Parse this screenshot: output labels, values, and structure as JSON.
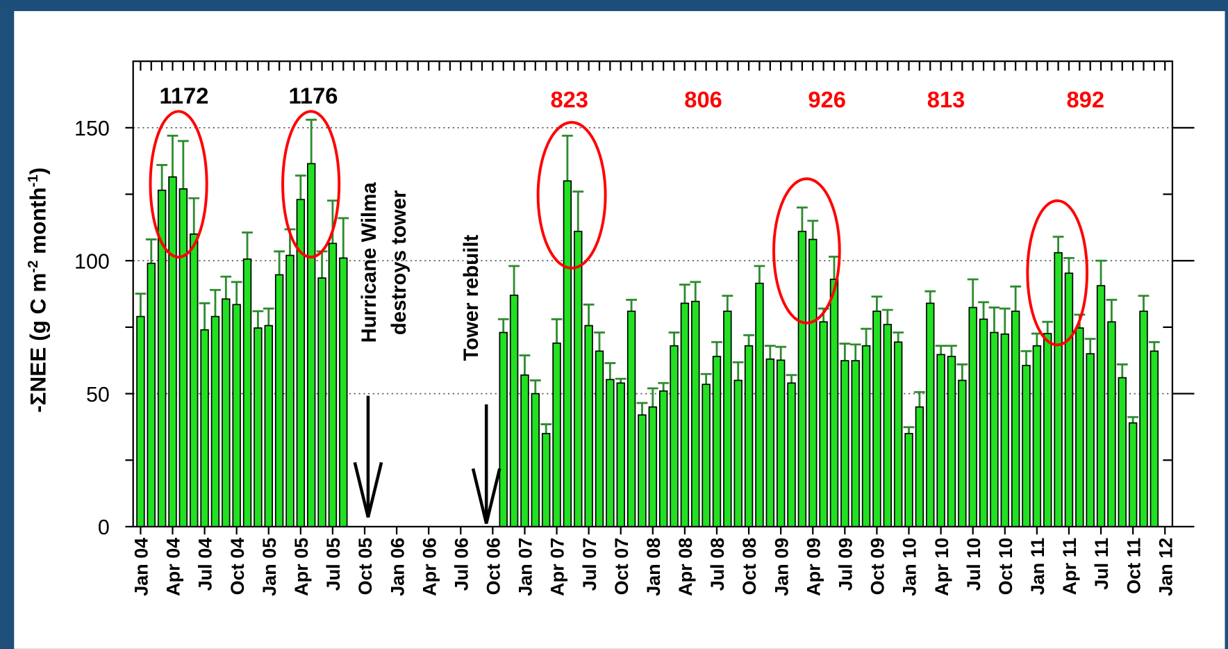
{
  "chart_data": {
    "type": "bar",
    "y_label": {
      "main": "-ΣNEE (g C m",
      "sup1": "-2",
      "mid": " month",
      "sup2": "-1",
      "end": ")"
    },
    "categories": [
      "Jan 04",
      null,
      null,
      "Apr 04",
      null,
      null,
      "Jul 04",
      null,
      null,
      "Oct 04",
      null,
      null,
      "Jan 05",
      null,
      null,
      "Apr 05",
      null,
      null,
      "Jul 05",
      null,
      null,
      "Oct 05",
      null,
      null,
      "Jan 06",
      null,
      null,
      "Apr 06",
      null,
      null,
      "Jul 06",
      null,
      null,
      "Oct 06",
      null,
      null,
      "Jan 07",
      null,
      null,
      "Apr 07",
      null,
      null,
      "Jul 07",
      null,
      null,
      "Oct 07",
      null,
      null,
      "Jan 08",
      null,
      null,
      "Apr 08",
      null,
      null,
      "Jul 08",
      null,
      null,
      "Oct 08",
      null,
      null,
      "Jan 09",
      null,
      null,
      "Apr 09",
      null,
      null,
      "Jul 09",
      null,
      null,
      "Oct 09",
      null,
      null,
      "Jan 10",
      null,
      null,
      "Apr 10",
      null,
      null,
      "Jul 10",
      null,
      null,
      "Oct 10",
      null,
      null,
      "Jan 11",
      null,
      null,
      "Apr 11",
      null,
      null,
      "Jul 11",
      null,
      null,
      "Oct 11",
      null,
      null,
      "Jan 12"
    ],
    "values": [
      79,
      99,
      126.5,
      131.5,
      127,
      110,
      74,
      79,
      85.6,
      83.5,
      100.6,
      74.7,
      75.6,
      94.7,
      102,
      123,
      136.5,
      93.5,
      106.5,
      101,
      null,
      null,
      null,
      null,
      null,
      null,
      null,
      null,
      null,
      null,
      null,
      null,
      null,
      null,
      73,
      87,
      57,
      50,
      35,
      69,
      130,
      111,
      75.6,
      66,
      55.3,
      54,
      81,
      42,
      45,
      51,
      68,
      84,
      84.7,
      53.5,
      64,
      81,
      55,
      68,
      91.5,
      63,
      62.6,
      54,
      111,
      108,
      77,
      93,
      62.4,
      62.4,
      68,
      81,
      76,
      69.4,
      35,
      45,
      84,
      64.7,
      64,
      55,
      82.4,
      78,
      73,
      72.4,
      81,
      60.6,
      68,
      72.6,
      103,
      95.3,
      74.7,
      65,
      90.6,
      77,
      56,
      39,
      81,
      66,
      null
    ],
    "errors": [
      8.6,
      9,
      9.5,
      15.5,
      18,
      13.5,
      10,
      10,
      8.4,
      8.5,
      10,
      6.3,
      6.4,
      8.8,
      9.8,
      9,
      16.5,
      10,
      16.1,
      15,
      null,
      null,
      null,
      null,
      null,
      null,
      null,
      null,
      null,
      null,
      null,
      null,
      null,
      null,
      5,
      11,
      7.4,
      5,
      3.5,
      9,
      17,
      15,
      7.9,
      7,
      6.2,
      1.6,
      4.3,
      4.5,
      7,
      3,
      5,
      7,
      7.3,
      3.9,
      5.4,
      5.8,
      6.8,
      4,
      6.5,
      5,
      5,
      3,
      9,
      7,
      5,
      8.5,
      6.4,
      6.1,
      6.4,
      5.5,
      5.5,
      3.6,
      2.4,
      5.6,
      4.5,
      3.3,
      4,
      6,
      10.6,
      6.4,
      9.4,
      9.6,
      9.3,
      5.4,
      4.6,
      4.4,
      6,
      5.7,
      5,
      5.6,
      9.4,
      8.3,
      5,
      2.2,
      5.8,
      3.4,
      null
    ],
    "color": "#22e022",
    "error_color": "#2e8b2e",
    "ylim": [
      0,
      175
    ],
    "yticks": [
      0,
      50,
      100,
      150
    ],
    "yminor_ticks": [
      25,
      75,
      125
    ],
    "grid": true,
    "annotations": [
      {
        "text": "1172",
        "color": "#000000"
      },
      {
        "text": "1176",
        "color": "#000000"
      },
      {
        "text": "823",
        "color": "#ff0000"
      },
      {
        "text": "806",
        "color": "#ff0000"
      },
      {
        "text": "926",
        "color": "#ff0000"
      },
      {
        "text": "813",
        "color": "#ff0000"
      },
      {
        "text": "892",
        "color": "#ff0000"
      }
    ],
    "events": [
      {
        "lines": [
          "Hurricane Wilma",
          "destroys tower"
        ]
      },
      {
        "lines": [
          "Tower rebuilt"
        ]
      }
    ]
  }
}
